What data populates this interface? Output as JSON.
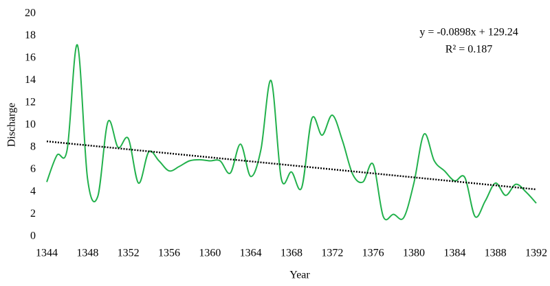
{
  "chart_data": {
    "type": "line",
    "x_label": "Year",
    "y_label": "Discharge",
    "x": [
      1344,
      1345,
      1346,
      1347,
      1348,
      1349,
      1350,
      1351,
      1352,
      1353,
      1354,
      1355,
      1356,
      1357,
      1358,
      1359,
      1360,
      1361,
      1362,
      1363,
      1364,
      1365,
      1366,
      1367,
      1368,
      1369,
      1370,
      1371,
      1372,
      1373,
      1374,
      1375,
      1376,
      1377,
      1378,
      1379,
      1380,
      1381,
      1382,
      1383,
      1384,
      1385,
      1386,
      1387,
      1388,
      1389,
      1390,
      1391,
      1392
    ],
    "series": [
      {
        "color": "#22b14c",
        "values": [
          4.9,
          7.3,
          7.8,
          17.2,
          5.2,
          3.6,
          10.3,
          8.0,
          8.8,
          4.8,
          7.6,
          6.8,
          5.9,
          6.3,
          6.8,
          6.9,
          6.8,
          6.8,
          5.7,
          8.3,
          5.4,
          7.8,
          14.0,
          5.2,
          5.8,
          4.4,
          10.6,
          9.1,
          10.9,
          8.6,
          5.6,
          4.9,
          6.5,
          1.8,
          2.0,
          1.7,
          4.8,
          9.2,
          6.8,
          5.9,
          5.0,
          5.3,
          1.8,
          3.2,
          4.8,
          3.7,
          4.7,
          4.0,
          3.0
        ]
      }
    ],
    "trendline": {
      "slope": -0.0898,
      "intercept": 129.24,
      "color": "#000000",
      "label": "y = -0.0898x + 129.24",
      "r_squared_label": "R² = 0.187"
    },
    "xlim": [
      1344,
      1392
    ],
    "xticks": [
      1344,
      1348,
      1352,
      1356,
      1360,
      1364,
      1368,
      1372,
      1376,
      1380,
      1384,
      1388,
      1392
    ],
    "ylim": [
      0,
      20
    ],
    "yticks": [
      0,
      2,
      4,
      6,
      8,
      10,
      12,
      14,
      16,
      18,
      20
    ],
    "grid": false
  }
}
